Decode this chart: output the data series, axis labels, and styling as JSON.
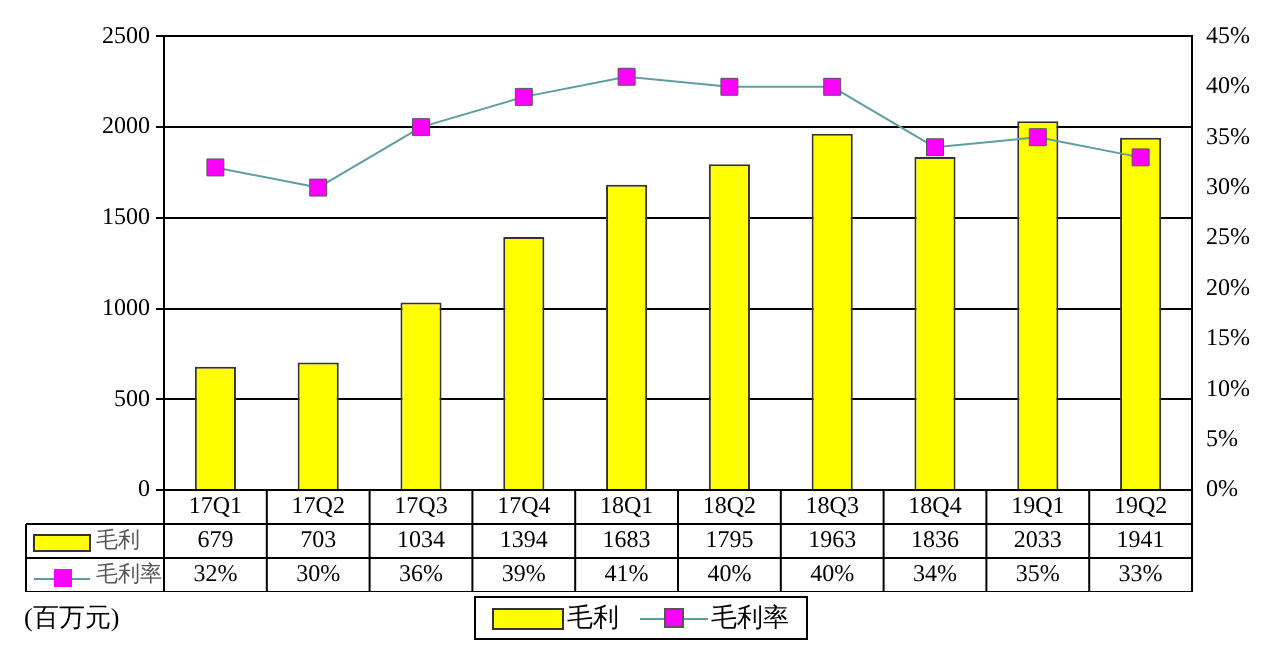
{
  "chart_data": {
    "type": "bar",
    "categories": [
      "17Q1",
      "17Q2",
      "17Q3",
      "17Q4",
      "18Q1",
      "18Q2",
      "18Q3",
      "18Q4",
      "19Q1",
      "19Q2"
    ],
    "series": [
      {
        "name": "毛利",
        "color": "#ffff00",
        "values": [
          679,
          703,
          1034,
          1394,
          1683,
          1795,
          1963,
          1836,
          2033,
          1941
        ]
      },
      {
        "name": "毛利率",
        "type": "line",
        "axis": "y2",
        "color": "#ff00ff",
        "marker": "square",
        "values": [
          32,
          30,
          36,
          39,
          41,
          40,
          40,
          34,
          35,
          33
        ],
        "value_labels": [
          "32%",
          "30%",
          "36%",
          "39%",
          "41%",
          "40%",
          "40%",
          "34%",
          "35%",
          "33%"
        ]
      }
    ],
    "ylim": [
      0,
      2500
    ],
    "yticks": [
      0,
      500,
      1000,
      1500,
      2000,
      2500
    ],
    "y2lim": [
      0,
      45
    ],
    "y2ticks": [
      {
        "value": 0,
        "label": "0%"
      },
      {
        "value": 5,
        "label": "5%"
      },
      {
        "value": 10,
        "label": "10%"
      },
      {
        "value": 15,
        "label": "15%"
      },
      {
        "value": 20,
        "label": "20%"
      },
      {
        "value": 25,
        "label": "25%"
      },
      {
        "value": 30,
        "label": "30%"
      },
      {
        "value": 35,
        "label": "35%"
      },
      {
        "value": 40,
        "label": "40%"
      },
      {
        "value": 45,
        "label": "45%"
      }
    ],
    "grid": "y",
    "legend": "bottom",
    "data_labels": true,
    "annotations": [
      "(百万元)"
    ]
  }
}
